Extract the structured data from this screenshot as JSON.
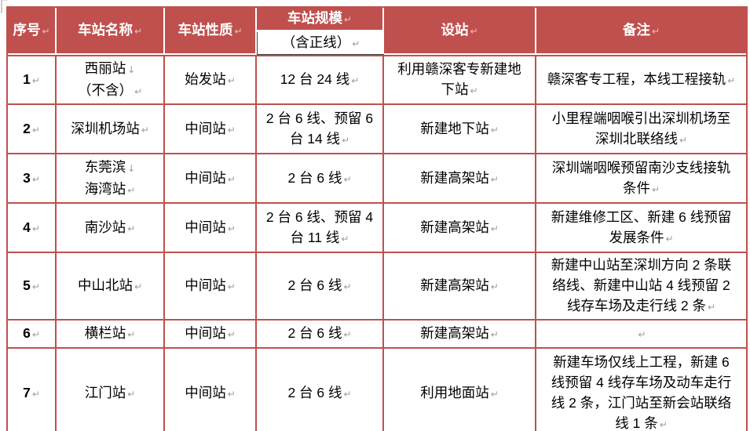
{
  "table": {
    "header": {
      "col_no": "序号",
      "col_name": "车站名称",
      "col_nature": "车站性质",
      "col_scale": "车站规模",
      "col_scale_sub": "（含正线）",
      "col_setup": "设站",
      "col_remark": "备注"
    },
    "rows": [
      {
        "no": "1",
        "name": [
          "西丽站",
          "（不含）"
        ],
        "nature": "始发站",
        "scale": "12 台 24 线",
        "setup": "利用赣深客专新建地下站",
        "remark": "赣深客专工程，本线工程接轨"
      },
      {
        "no": "2",
        "name": [
          "深圳机场站"
        ],
        "nature": "中间站",
        "scale": "2 台 6 线、预留 6 台 14 线",
        "setup": "新建地下站",
        "remark": "小里程端咽喉引出深圳机场至深圳北联络线"
      },
      {
        "no": "3",
        "name": [
          "东莞滨",
          "海湾站"
        ],
        "nature": "中间站",
        "scale": "2 台 6 线",
        "setup": "新建高架站",
        "remark": "深圳端咽喉预留南沙支线接轨条件"
      },
      {
        "no": "4",
        "name": [
          "南沙站"
        ],
        "nature": "中间站",
        "scale": "2 台 6 线、预留 4 台 11 线",
        "setup": "新建高架站",
        "remark": "新建维修工区、新建 6 线预留发展条件"
      },
      {
        "no": "5",
        "name": [
          "中山北站"
        ],
        "nature": "中间站",
        "scale": "2 台 6 线",
        "setup": "新建高架站",
        "remark": "新建中山站至深圳方向 2 条联络线、新建中山站 4 线预留 2 线存车场及走行线 2 条"
      },
      {
        "no": "6",
        "name": [
          "横栏站"
        ],
        "nature": "中间站",
        "scale": "2 台 6 线",
        "setup": "新建高架站",
        "remark": ""
      },
      {
        "no": "7",
        "name": [
          "江门站"
        ],
        "nature": "中间站",
        "scale": "2 台 6 线",
        "setup": "利用地面站",
        "remark": "新建车场仅线上工程，新建 6 线预留 4 线存车场及动车走行线 2 条，江门站至新会站联络线 1 条"
      }
    ],
    "marks": {
      "line_break": "↓",
      "paragraph": "↵"
    },
    "colors": {
      "header_bg": "#c0504d",
      "grid_border": "#c0504d",
      "subheader_border": "#404040",
      "header_text": "#ffffff",
      "body_text": "#000000"
    }
  }
}
